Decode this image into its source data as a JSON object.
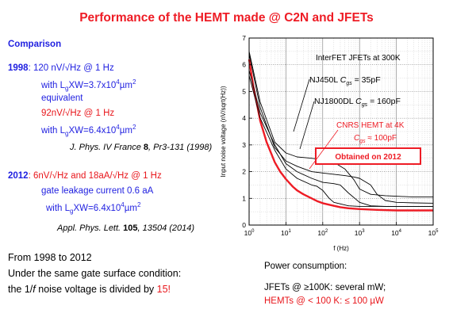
{
  "slide": {
    "title": "Performance of the HEMT made @ C2N and JFETs",
    "comparison_heading": "Comparison",
    "y1998": {
      "year": "1998",
      "noise": ": 120 nV/√Hz @ 1 Hz",
      "lgxw_prefix": "with L",
      "lgxw_mid": "XW=3.7x10",
      "lgxw_unit": "µm",
      "equivalent": "equivalent",
      "noise2": "92nV/√Hz @ 1 Hz",
      "lgxw2_prefix": "with L",
      "lgxw2_mid": "XW=6.4x10",
      "lgxw2_unit": "µm",
      "sub_g": "g",
      "sup_4": "4",
      "sup_2": "2",
      "ref_journal": "J. Phys. IV France ",
      "ref_vol": "8",
      "ref_rest": ", Pr3-131 (1998)"
    },
    "y2012": {
      "year": "2012",
      "noise": ": 6nV/√Hz and 18aA/√Hz @ 1 Hz",
      "leakage": "gate leakage current 0.6 aA",
      "lgxw_prefix": "with L",
      "lgxw_mid": "XW=6.4x10",
      "lgxw_unit": "µm",
      "ref_journal": "Appl. Phys. Lett. ",
      "ref_vol": "105",
      "ref_rest": ", 13504 (2014)"
    },
    "from_to": "From 1998 to 2012",
    "gate_condition": "Under the same gate surface condition:",
    "noise_divided_prefix": "the 1/",
    "noise_divided_f": "f",
    "noise_divided_mid": " noise voltage is divided by ",
    "noise_divided_factor": "15!",
    "power_heading": "Power consumption:",
    "power_jfet": "JFETs @ ≥100K: several mW;",
    "power_hemt": "HEMTs @ < 100 K: ≤ 100 µW"
  },
  "chart_data": {
    "type": "line",
    "xlabel": "f (Hz)",
    "ylabel": "Input noise voltage (nV/sqrt(Hz))",
    "xscale": "log",
    "yscale": "linear",
    "xlim": [
      1,
      100000
    ],
    "ylim": [
      0,
      7
    ],
    "x_ticks": [
      {
        "base": "10",
        "exp": "0"
      },
      {
        "base": "10",
        "exp": "1"
      },
      {
        "base": "10",
        "exp": "2"
      },
      {
        "base": "10",
        "exp": "3"
      },
      {
        "base": "10",
        "exp": "4"
      },
      {
        "base": "10",
        "exp": "5"
      }
    ],
    "y_ticks": [
      "0",
      "1",
      "2",
      "3",
      "4",
      "5",
      "6",
      "7"
    ],
    "grid": true,
    "annotations": {
      "interfet": "InterFET JFETs at 300K",
      "nj450l_name": "NJ450L ",
      "nj450l_c": "C",
      "nj450l_sub": "gs",
      "nj450l_val": " = 35pF",
      "nj1800_name": "NJ1800DL ",
      "nj1800_c": "C",
      "nj1800_sub": "gs",
      "nj1800_val": " = 160pF",
      "hemt_name": "CNRS HEMT at 4K",
      "hemt_c": "C",
      "hemt_sub": "gs",
      "hemt_val": " ≈ 100pF",
      "obtained": "Obtained on 2012"
    },
    "series": [
      {
        "name": "NJ450L Cgs = 35pF",
        "color": "#000000",
        "points": [
          [
            1,
            6.5
          ],
          [
            2,
            4.6
          ],
          [
            5,
            3.1
          ],
          [
            10,
            2.7
          ],
          [
            20,
            2.55
          ],
          [
            50,
            2.5
          ],
          [
            100,
            2.45
          ],
          [
            200,
            2.35
          ],
          [
            400,
            2.1
          ],
          [
            700,
            1.7
          ],
          [
            1000,
            1.35
          ],
          [
            2000,
            1.15
          ],
          [
            5000,
            1.1
          ],
          [
            10000,
            1.08
          ],
          [
            30000,
            1.05
          ],
          [
            100000,
            1.05
          ]
        ]
      },
      {
        "name": "NJ1800DL Cgs = 160pF",
        "color": "#000000",
        "points": [
          [
            1,
            6.4
          ],
          [
            2,
            4.4
          ],
          [
            5,
            2.9
          ],
          [
            10,
            2.4
          ],
          [
            20,
            2.2
          ],
          [
            50,
            2.0
          ],
          [
            100,
            1.95
          ],
          [
            200,
            1.9
          ],
          [
            400,
            1.85
          ],
          [
            700,
            1.8
          ],
          [
            1000,
            1.75
          ],
          [
            2000,
            1.5
          ],
          [
            3000,
            1.15
          ],
          [
            5000,
            0.92
          ],
          [
            10000,
            0.85
          ],
          [
            30000,
            0.83
          ],
          [
            100000,
            0.82
          ]
        ]
      },
      {
        "name": "CNRS HEMT at 4K Cgs ≈ 100pF",
        "color": "#ee1c25",
        "points": [
          [
            1,
            6.2
          ],
          [
            1.3,
            5.2
          ],
          [
            1.7,
            4.4
          ],
          [
            2,
            3.9
          ],
          [
            3,
            3.1
          ],
          [
            5,
            2.35
          ],
          [
            7,
            2.0
          ],
          [
            10,
            1.72
          ],
          [
            15,
            1.45
          ],
          [
            20,
            1.3
          ],
          [
            30,
            1.15
          ],
          [
            50,
            1.0
          ],
          [
            70,
            0.9
          ],
          [
            100,
            0.82
          ],
          [
            200,
            0.72
          ],
          [
            300,
            0.67
          ],
          [
            500,
            0.63
          ],
          [
            1000,
            0.6
          ],
          [
            3000,
            0.57
          ],
          [
            10000,
            0.55
          ],
          [
            30000,
            0.55
          ],
          [
            100000,
            0.55
          ]
        ]
      },
      {
        "name": "",
        "color": "#000000",
        "points": [
          [
            1,
            5.8
          ],
          [
            2,
            4.2
          ],
          [
            5,
            3.0
          ],
          [
            10,
            2.3
          ],
          [
            20,
            2.0
          ],
          [
            50,
            1.75
          ],
          [
            100,
            1.6
          ],
          [
            200,
            1.55
          ],
          [
            300,
            1.5
          ],
          [
            500,
            1.2
          ],
          [
            1000,
            0.85
          ],
          [
            2000,
            0.72
          ],
          [
            5000,
            0.7
          ],
          [
            10000,
            0.7
          ],
          [
            100000,
            0.7
          ]
        ]
      },
      {
        "name": "",
        "color": "#000000",
        "points": [
          [
            1,
            5.6
          ],
          [
            2,
            4.0
          ],
          [
            5,
            2.8
          ],
          [
            10,
            2.1
          ],
          [
            20,
            1.75
          ],
          [
            50,
            1.5
          ],
          [
            70,
            1.45
          ],
          [
            100,
            1.3
          ],
          [
            150,
            1.0
          ],
          [
            200,
            0.85
          ],
          [
            500,
            0.72
          ],
          [
            1000,
            0.7
          ],
          [
            10000,
            0.7
          ],
          [
            100000,
            0.7
          ]
        ]
      }
    ]
  },
  "colors": {
    "red": "#ee1c25",
    "blue": "#1f1fe0",
    "obtained_box": "#ee1c25"
  }
}
